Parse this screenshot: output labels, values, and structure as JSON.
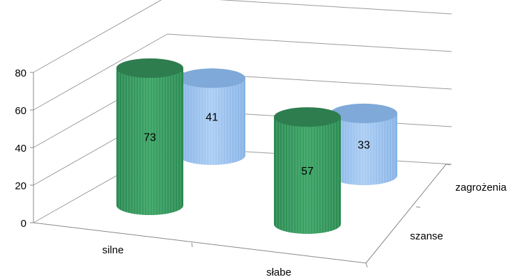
{
  "chart_data": {
    "type": "bar",
    "subtype": "3d-cylinder",
    "title": "",
    "xlabel": "",
    "ylabel": "",
    "categories": [
      "silne",
      "słabe"
    ],
    "depth_categories": [
      "szanse",
      "zagrożenia"
    ],
    "ylim": [
      0,
      80
    ],
    "yticks": [
      0,
      20,
      40,
      60,
      80
    ],
    "grid": true,
    "legend": "none",
    "series": [
      {
        "color": "#2e8b57",
        "values": [
          73,
          57
        ]
      },
      {
        "color": "#8fb8e8",
        "values": [
          41,
          33
        ]
      }
    ],
    "data_labels": [
      "73",
      "57",
      "41",
      "33"
    ]
  }
}
